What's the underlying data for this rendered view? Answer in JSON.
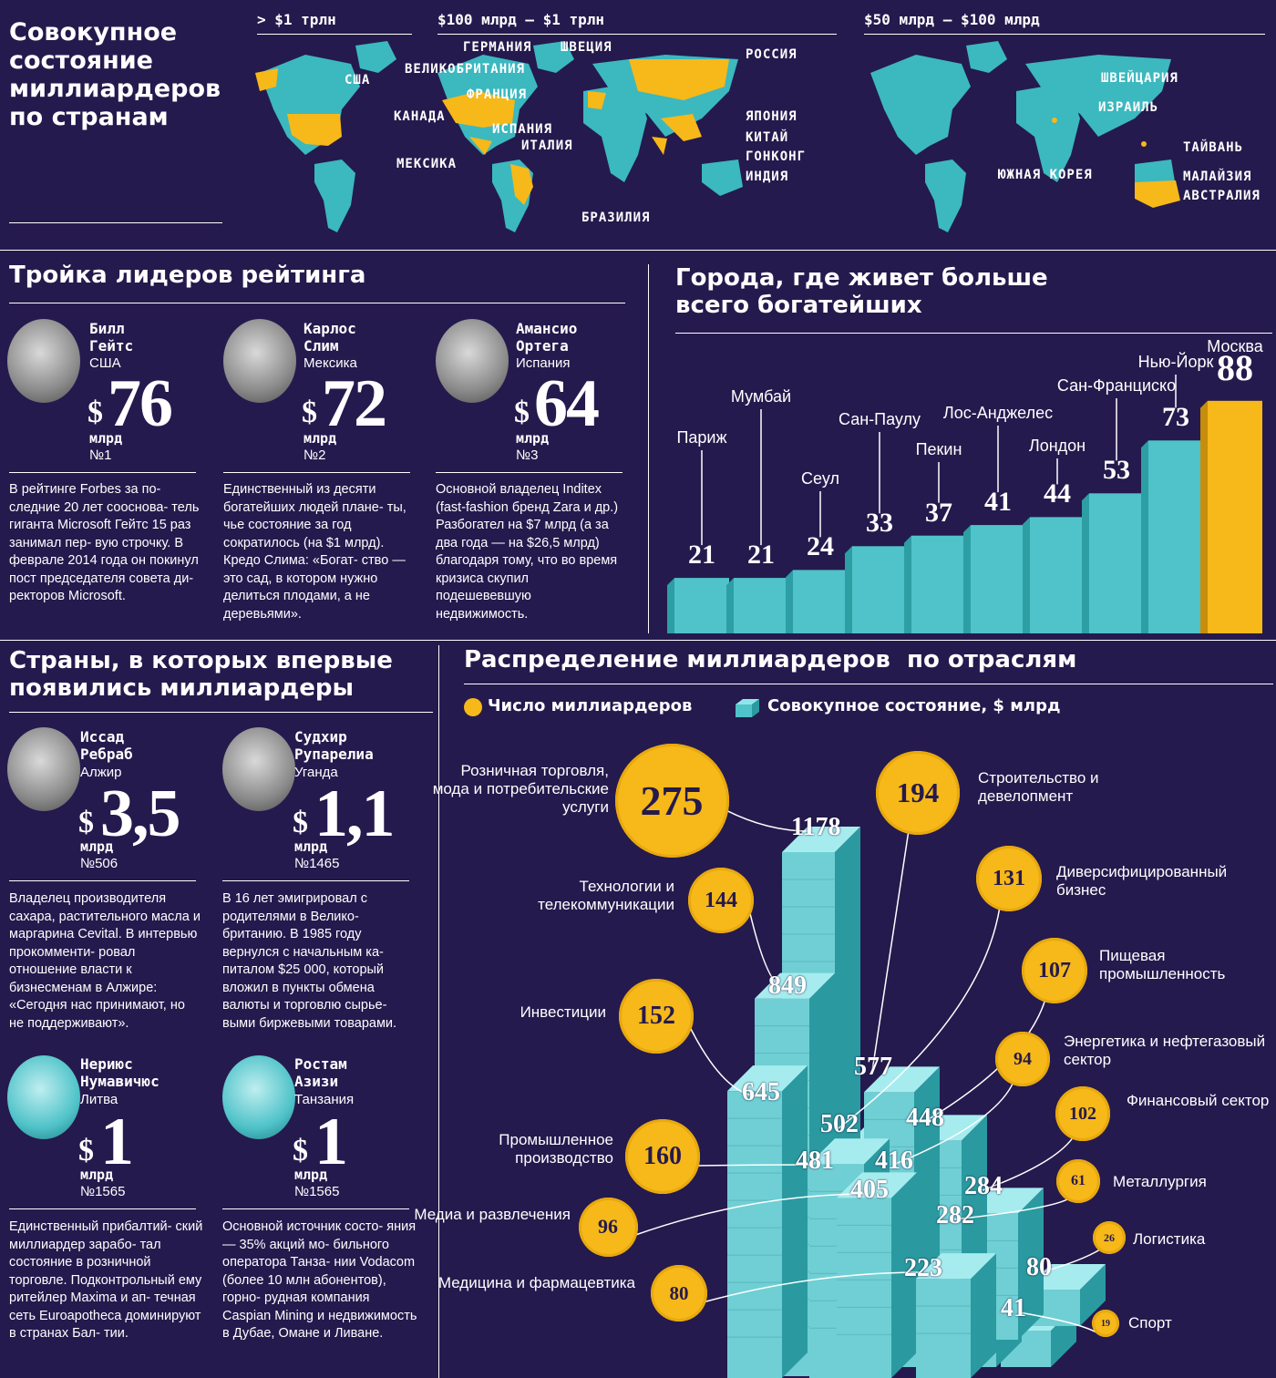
{
  "title": "Совокупное состояние миллиардеров по странам",
  "maps": {
    "headers": [
      "> $1 трлн",
      "$100 млрд — $1 трлн",
      "$50 млрд — $100 млрд"
    ],
    "labels_1": [
      "США"
    ],
    "labels_2": [
      "ГЕРМАНИЯ",
      "ШВЕЦИЯ",
      "РОССИЯ",
      "ВЕЛИКОБРИТАНИЯ",
      "ФРАНЦИЯ",
      "КАНАДА",
      "ИСПАНИЯ",
      "ИТАЛИЯ",
      "ЯПОНИЯ",
      "КИТАЙ",
      "ГОНКОНГ",
      "ИНДИЯ",
      "МЕКСИКА",
      "БРАЗИЛИЯ"
    ],
    "labels_3": [
      "ШВЕЙЦАРИЯ",
      "ИЗРАИЛЬ",
      "ТАЙВАНЬ",
      "ЮЖНАЯ КОРЕЯ",
      "МАЛАЙЗИЯ",
      "АВСТРАЛИЯ"
    ],
    "colors": {
      "land": "#3cb8bf",
      "highlight": "#f7b819"
    }
  },
  "top3": {
    "title": "Тройка лидеров рейтинга",
    "people": [
      {
        "name1": "Билл",
        "name2": "Гейтс",
        "country": "США",
        "dollar": "$",
        "value": "76",
        "unit": "млрд",
        "rank": "№1",
        "desc": "В рейтинге Forbes за по- следние 20 лет сооснова- тель гиганта Microsoft Гейтс 15 раз занимал пер- вую строчку. В феврале 2014 года он покинул пост председателя совета ди- ректоров Microsoft."
      },
      {
        "name1": "Карлос",
        "name2": "Слим",
        "country": "Мексика",
        "dollar": "$",
        "value": "72",
        "unit": "млрд",
        "rank": "№2",
        "desc": "Единственный из десяти богатейших людей плане- ты, чье состояние за год сократилось (на $1 млрд). Кредо Слима: «Богат- ство — это сад, в котором нужно делиться плодами, а не деревьями»."
      },
      {
        "name1": "Амансио",
        "name2": "Ортега",
        "country": "Испания",
        "dollar": "$",
        "value": "64",
        "unit": "млрд",
        "rank": "№3",
        "desc": "Основной владелец Inditex (fast-fashion бренд Zara и др.) Разбогател на $7 млрд (а за два года — на $26,5 млрд) благодаря тому, что во время кризиса скупил подешевевшую недвижимость."
      }
    ]
  },
  "cities": {
    "title_line1": "Города, где живет больше",
    "title_line2": "всего богатейших",
    "items": [
      {
        "name": "Париж",
        "value": 21
      },
      {
        "name": "Мумбай",
        "value": 21
      },
      {
        "name": "Сеул",
        "value": 24
      },
      {
        "name": "Сан-Паулу",
        "value": 33
      },
      {
        "name": "Пекин",
        "value": 37
      },
      {
        "name": "Лос-Анджелес",
        "value": 41
      },
      {
        "name": "Лондон",
        "value": 44
      },
      {
        "name": "Сан-Франциско",
        "value": 53
      },
      {
        "name": "Нью-Йорк",
        "value": 73
      },
      {
        "name": "Москва",
        "value": 88
      }
    ]
  },
  "new_countries": {
    "title_line1": "Страны, в которых впервые",
    "title_line2": "появились миллиардеры",
    "people": [
      {
        "name1": "Иссад",
        "name2": "Ребраб",
        "country": "Алжир",
        "dollar": "$",
        "value": "3,5",
        "unit": "млрд",
        "rank": "№506",
        "desc": "Владелец производителя сахара, растительного масла и маргарина Cevital. В интервью прокомменти- ровал отношение власти к бизнесменам в Алжире: «Сегодня нас принимают, но не поддерживают»."
      },
      {
        "name1": "Судхир",
        "name2": "Рупарелиа",
        "country": "Уганда",
        "dollar": "$",
        "value": "1,1",
        "unit": "млрд",
        "rank": "№1465",
        "desc": "В 16 лет эмигрировал с родителями в Велико- британию. В 1985 году вернулся с начальным ка- питалом $25 000, который вложил в пункты обмена валюты и торговлю сырье- выми биржевыми товарами."
      },
      {
        "name1": "Нериюс",
        "name2": "Нумавичюс",
        "country": "Литва",
        "dollar": "$",
        "value": "1",
        "unit": "млрд",
        "rank": "№1565",
        "desc": "Единственный прибалтий- ский миллиардер зарабо- тал состояние в розничной торговле. Подконтрольный ему ритейлер Maxima и ап- течная сеть Euroapotheca доминируют в странах Бал- тии."
      },
      {
        "name1": "Ростам",
        "name2": "Азизи",
        "country": "Танзания",
        "dollar": "$",
        "value": "1",
        "unit": "млрд",
        "rank": "№1565",
        "desc": "Основной источник состо- яния — 35% акций мо- бильного оператора Танза- нии Vodacom (более 10 млн абонентов), горно- рудная компания Caspian Mining и недвижимость в Дубае, Омане и Ливане."
      }
    ]
  },
  "industries": {
    "title": "Распределение миллиардеров  по отраслям",
    "legend_count": "Число миллиардеров",
    "legend_total": "Совокупное состояние, $ млрд",
    "items": [
      {
        "name": "Розничная торговля, мода и потребительские услуги",
        "count": 275,
        "total": 1178
      },
      {
        "name": "Технологии и телекоммуникации",
        "count": 144,
        "total": 849
      },
      {
        "name": "Инвестиции",
        "count": 152,
        "total": 645
      },
      {
        "name": "Промышленное производство",
        "count": 160,
        "total": 481
      },
      {
        "name": "Медиа и развлечения",
        "count": 96,
        "total": 405
      },
      {
        "name": "Медицина и фармацевтика",
        "count": 80,
        "total": 223
      },
      {
        "name": "Строительство и девелопмент",
        "count": 194,
        "total": 577
      },
      {
        "name": "Диверсифицированный бизнес",
        "count": 131,
        "total": 502
      },
      {
        "name": "Пищевая промышленность",
        "count": 107,
        "total": 448
      },
      {
        "name": "Энергетика и нефтегазовый сектор",
        "count": 94,
        "total": 416
      },
      {
        "name": "Финансовый сектор",
        "count": 102,
        "total": 284
      },
      {
        "name": "Металлургия",
        "count": 61,
        "total": 282
      },
      {
        "name": "Логистика",
        "count": 26,
        "total": 80
      },
      {
        "name": "Спорт",
        "count": 19,
        "total": 41
      }
    ],
    "colors": {
      "circle": "#f7b819",
      "bar": "#4fc3c9"
    }
  }
}
